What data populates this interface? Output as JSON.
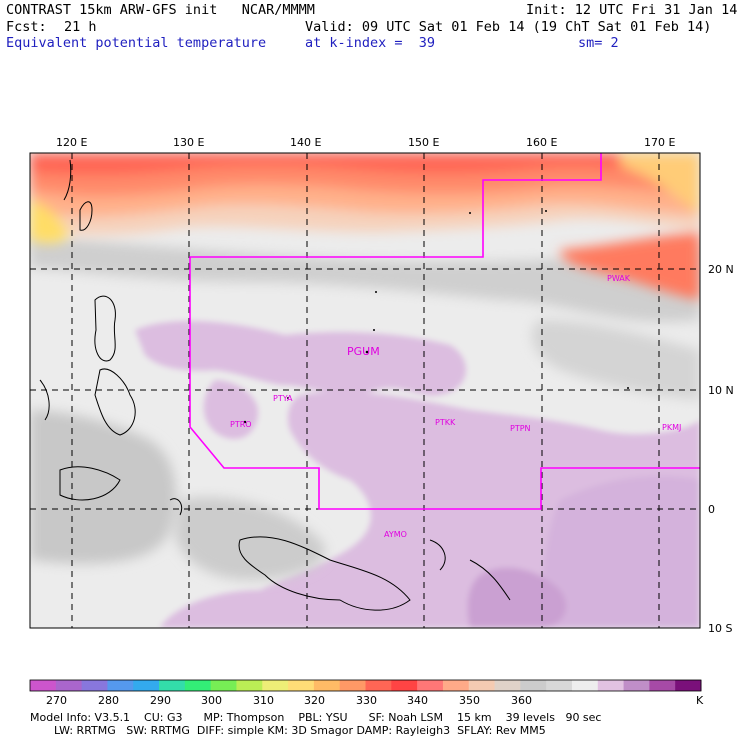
{
  "header": {
    "title": "CONTRAST 15km ARW-GFS init   NCAR/MMMM",
    "init": "Init: 12 UTC Fri 31 Jan 14",
    "fcst_label": "Fcst:",
    "fcst_value": "21 h",
    "valid": "Valid: 09 UTC Sat 01 Feb 14 (19 ChT Sat 01 Feb 14)",
    "field": "Equivalent potential temperature",
    "level": "at k-index =  39",
    "smoothing": "sm= 2"
  },
  "map": {
    "lon_labels": [
      "120 E",
      "130 E",
      "140 E",
      "150 E",
      "160 E",
      "170 E"
    ],
    "lat_labels": [
      "20 N",
      "10 N",
      "0",
      "10 S"
    ],
    "stations": [
      "PWAK",
      "PGUM",
      "PTYA",
      "PTRO",
      "PTKK",
      "PTPN",
      "PKMJ",
      "AYMO"
    ]
  },
  "colorbar": {
    "colors": [
      "#cc55cc",
      "#aa66cc",
      "#8877dd",
      "#5599ee",
      "#33aaee",
      "#33ddaa",
      "#33ee77",
      "#77ee55",
      "#bbee55",
      "#eeee77",
      "#ffdd77",
      "#ffbb66",
      "#ff9966",
      "#ff6655",
      "#ff4444",
      "#ff7777",
      "#ffaa88",
      "#f5cbb2",
      "#e0d2c8",
      "#cccccc",
      "#d8d8d8",
      "#eeeeee",
      "#e2c2e2",
      "#c08ec8",
      "#a64aa6",
      "#7a107a"
    ],
    "labels": [
      "270",
      "280",
      "290",
      "300",
      "310",
      "320",
      "330",
      "340",
      "350",
      "360"
    ],
    "unit": "K"
  },
  "model_info": {
    "line1": "Model Info: V3.5.1    CU: G3      MP: Thompson    PBL: YSU      SF: Noah LSM    15 km    39 levels   90 sec",
    "line2": "LW: RRTMG   SW: RRTMG  DIFF: simple KM: 3D Smagor DAMP: Rayleigh3  SFLAY: Rev MM5"
  }
}
